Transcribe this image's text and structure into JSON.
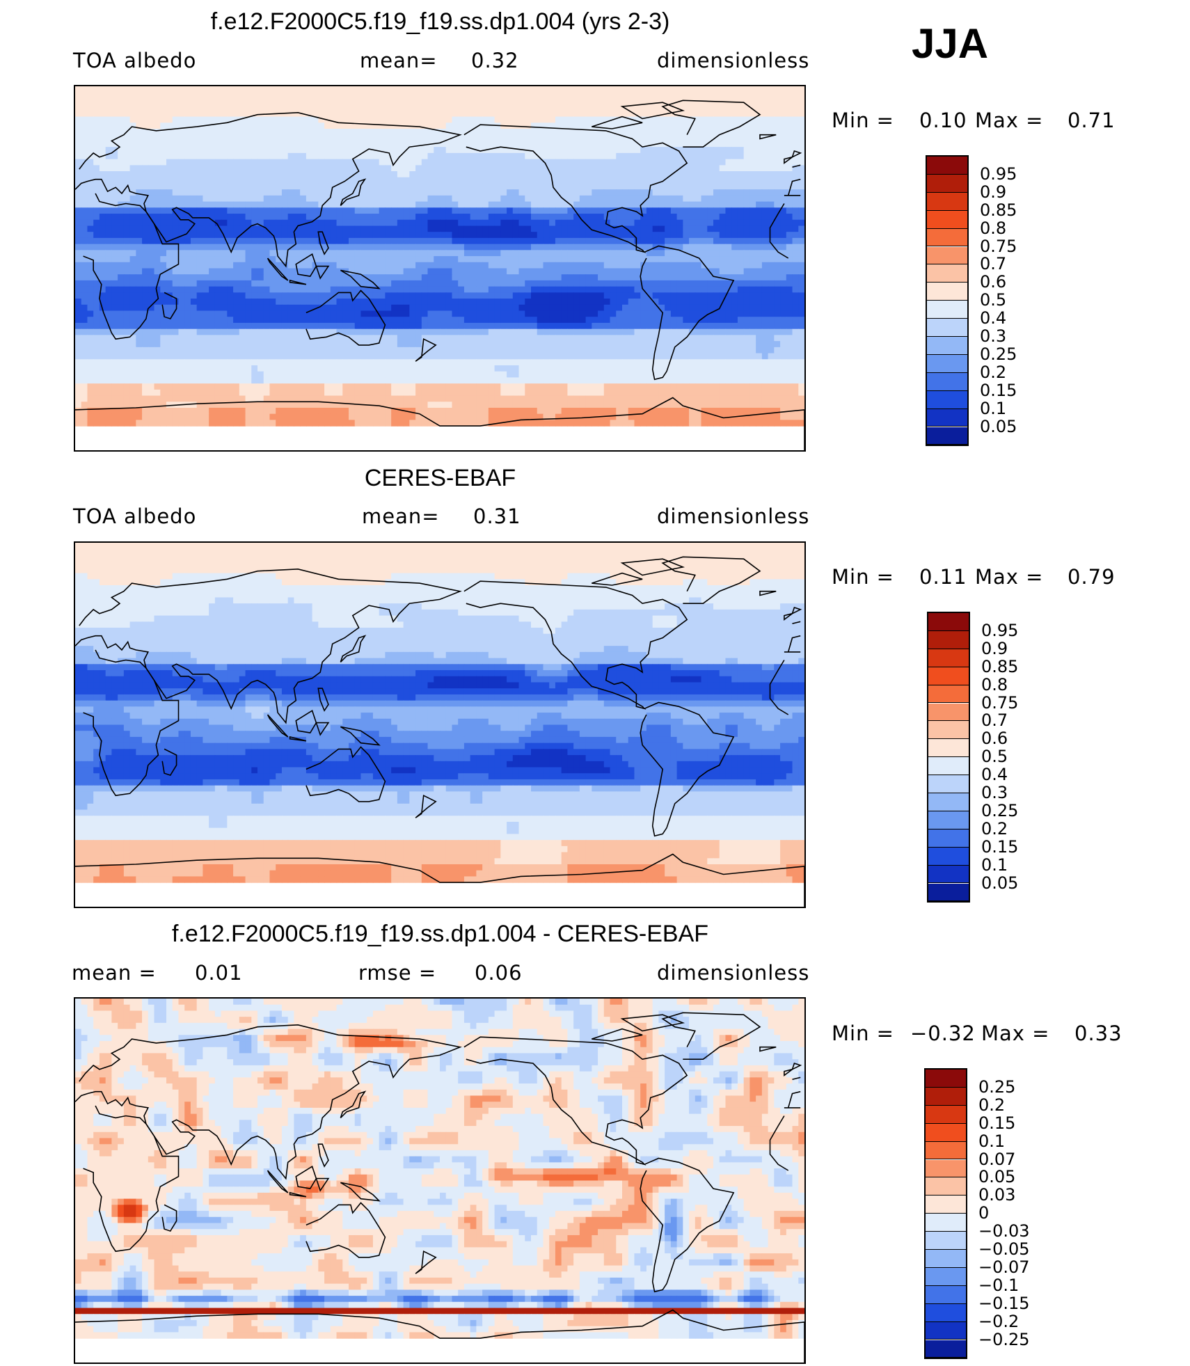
{
  "season": "JJA",
  "panels": [
    {
      "title": "f.e12.F2000C5.f19_f19.ss.dp1.004 (yrs 2-3)",
      "left_text": "TOA albedo",
      "center_label": "mean=",
      "center_value": "0.32",
      "right_text": "dimensionless",
      "min_label": "Min =",
      "min_value": "0.10",
      "max_label": "Max =",
      "max_value": "0.71"
    },
    {
      "title": "CERES-EBAF",
      "left_text": "TOA albedo",
      "center_label": "mean=",
      "center_value": "0.31",
      "right_text": "dimensionless",
      "min_label": "Min =",
      "min_value": "0.11",
      "max_label": "Max =",
      "max_value": "0.79"
    },
    {
      "title": "f.e12.F2000C5.f19_f19.ss.dp1.004 - CERES-EBAF",
      "left_label": "mean =",
      "left_value": "0.01",
      "center_label": "rmse =",
      "center_value": "0.06",
      "right_text": "dimensionless",
      "min_label": "Min =",
      "min_value": "−0.32",
      "max_label": "Max =",
      "max_value": "0.33"
    }
  ],
  "colorbars": {
    "albedo": {
      "labels": [
        "0.95",
        "0.9",
        "0.85",
        "0.8",
        "0.75",
        "0.7",
        "0.6",
        "0.5",
        "0.4",
        "0.3",
        "0.25",
        "0.2",
        "0.15",
        "0.1",
        "0.05"
      ],
      "colors": [
        "#8b0a0a",
        "#b01e0a",
        "#d83812",
        "#f04e1e",
        "#f46c3a",
        "#f8946a",
        "#fbc3a6",
        "#fde6d8",
        "#e0ecfa",
        "#bcd4fa",
        "#93b8f6",
        "#6a98f0",
        "#4273e8",
        "#1f4ede",
        "#1233c4",
        "#0a1e9c"
      ]
    },
    "diff": {
      "labels": [
        "0.25",
        "0.2",
        "0.15",
        "0.1",
        "0.07",
        "0.05",
        "0.03",
        "0",
        "−0.03",
        "−0.05",
        "−0.07",
        "−0.1",
        "−0.15",
        "−0.2",
        "−0.25"
      ],
      "colors": [
        "#8b0a0a",
        "#b01e0a",
        "#d83812",
        "#f04e1e",
        "#f46c3a",
        "#f8946a",
        "#fbc3a6",
        "#fde6d8",
        "#e0ecfa",
        "#bcd4fa",
        "#93b8f6",
        "#6a98f0",
        "#4273e8",
        "#1f4ede",
        "#1233c4",
        "#0a1e9c"
      ]
    }
  },
  "chart_data": [
    {
      "type": "heatmap",
      "title": "f.e12.F2000C5.f19_f19.ss.dp1.004 (yrs 2-3)",
      "variable": "TOA albedo",
      "units": "dimensionless",
      "mean": 0.32,
      "min": 0.1,
      "max": 0.71,
      "contour_levels": [
        0.05,
        0.1,
        0.15,
        0.2,
        0.25,
        0.3,
        0.4,
        0.5,
        0.6,
        0.7,
        0.75,
        0.8,
        0.85,
        0.9,
        0.95
      ]
    },
    {
      "type": "heatmap",
      "title": "CERES-EBAF",
      "variable": "TOA albedo",
      "units": "dimensionless",
      "mean": 0.31,
      "min": 0.11,
      "max": 0.79,
      "contour_levels": [
        0.05,
        0.1,
        0.15,
        0.2,
        0.25,
        0.3,
        0.4,
        0.5,
        0.6,
        0.7,
        0.75,
        0.8,
        0.85,
        0.9,
        0.95
      ]
    },
    {
      "type": "heatmap",
      "title": "f.e12.F2000C5.f19_f19.ss.dp1.004 - CERES-EBAF",
      "units": "dimensionless",
      "mean": 0.01,
      "rmse": 0.06,
      "min": -0.32,
      "max": 0.33,
      "contour_levels": [
        -0.25,
        -0.2,
        -0.15,
        -0.1,
        -0.07,
        -0.05,
        -0.03,
        0,
        0.03,
        0.05,
        0.07,
        0.1,
        0.15,
        0.2,
        0.25
      ]
    }
  ]
}
